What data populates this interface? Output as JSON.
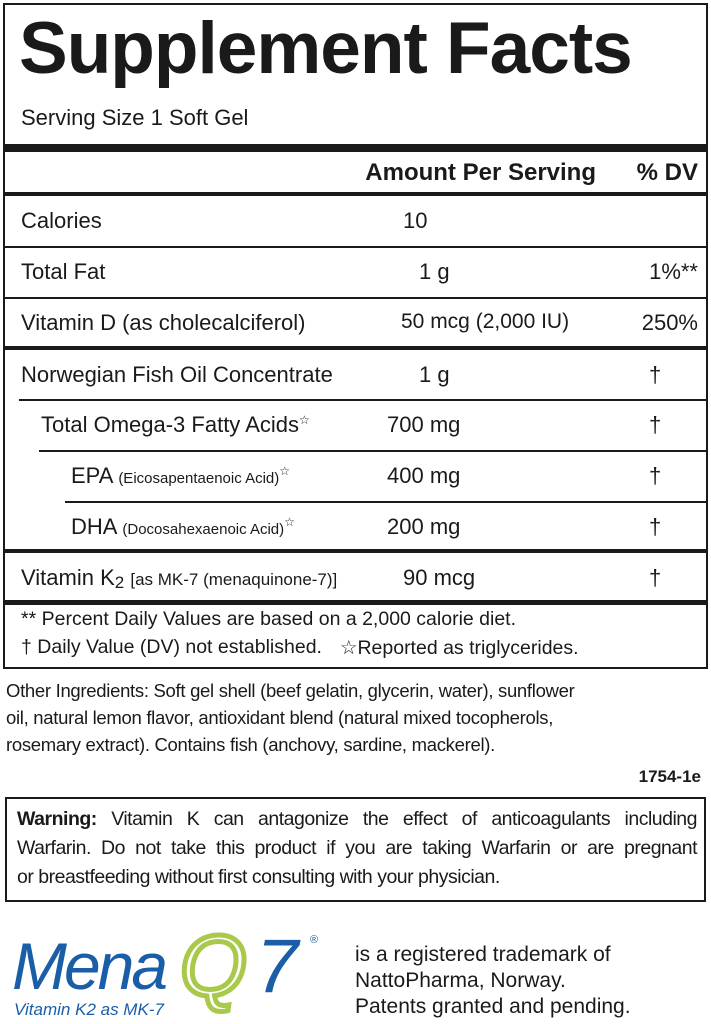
{
  "title": "Supplement Facts",
  "serving_size": "Serving Size 1 Soft Gel",
  "header": {
    "amount": "Amount Per Serving",
    "dv": "% DV"
  },
  "rows": [
    {
      "name": "Calories",
      "amount": "10",
      "dv": ""
    },
    {
      "name": "Total Fat",
      "amount": "1 g",
      "dv": "1%**"
    },
    {
      "name": "Vitamin D (as cholecalciferol)",
      "amount": "50 mcg (2,000 IU)",
      "dv": "250%"
    },
    {
      "name": "Norwegian Fish Oil Concentrate",
      "amount": "1 g",
      "dv": "†"
    },
    {
      "name": "Total Omega-3 Fatty Acids",
      "mark": "☆",
      "amount": "700 mg",
      "dv": "†"
    },
    {
      "name": "EPA",
      "sub": "(Eicosapentaenoic Acid)",
      "mark": "☆",
      "amount": "400 mg",
      "dv": "†"
    },
    {
      "name": "DHA",
      "sub": "(Docosahexaenoic Acid)",
      "mark": "☆",
      "amount": "200 mg",
      "dv": "†"
    },
    {
      "name": "Vitamin K",
      "subscript": "2",
      "sub": "[as MK-7 (menaquinone-7)]",
      "amount": "90 mcg",
      "dv": "†"
    }
  ],
  "footnotes": [
    "** Percent Daily Values are based on a 2,000 calorie diet.",
    "† Daily Value (DV) not established.",
    "☆Reported as triglycerides."
  ],
  "other_ingredients": [
    "Other Ingredients: Soft gel shell (beef gelatin, glycerin, water), sunflower",
    "oil, natural lemon flavor, antioxidant blend (natural mixed tocopherols,",
    "rosemary extract). Contains fish (anchovy, sardine, mackerel)."
  ],
  "code": "1754-1e",
  "warning": {
    "label": "Warning:",
    "lines": [
      "Vitamin K can antagonize the effect of anticoagulants including",
      "Warfarin. Do not take this product if you are taking Warfarin or are pregnant",
      "or breastfeeding without first consulting with your physician."
    ]
  },
  "logo": {
    "text_mena": "Mena",
    "text_q": "Q",
    "text_7": "7",
    "reg": "®",
    "tagline": "Vitamin K2 as MK-7",
    "blue": "#1a5ea8",
    "green": "#a9c94b"
  },
  "trademark": [
    "is a registered trademark of",
    "NattoPharma, Norway.",
    "Patents granted and pending."
  ]
}
